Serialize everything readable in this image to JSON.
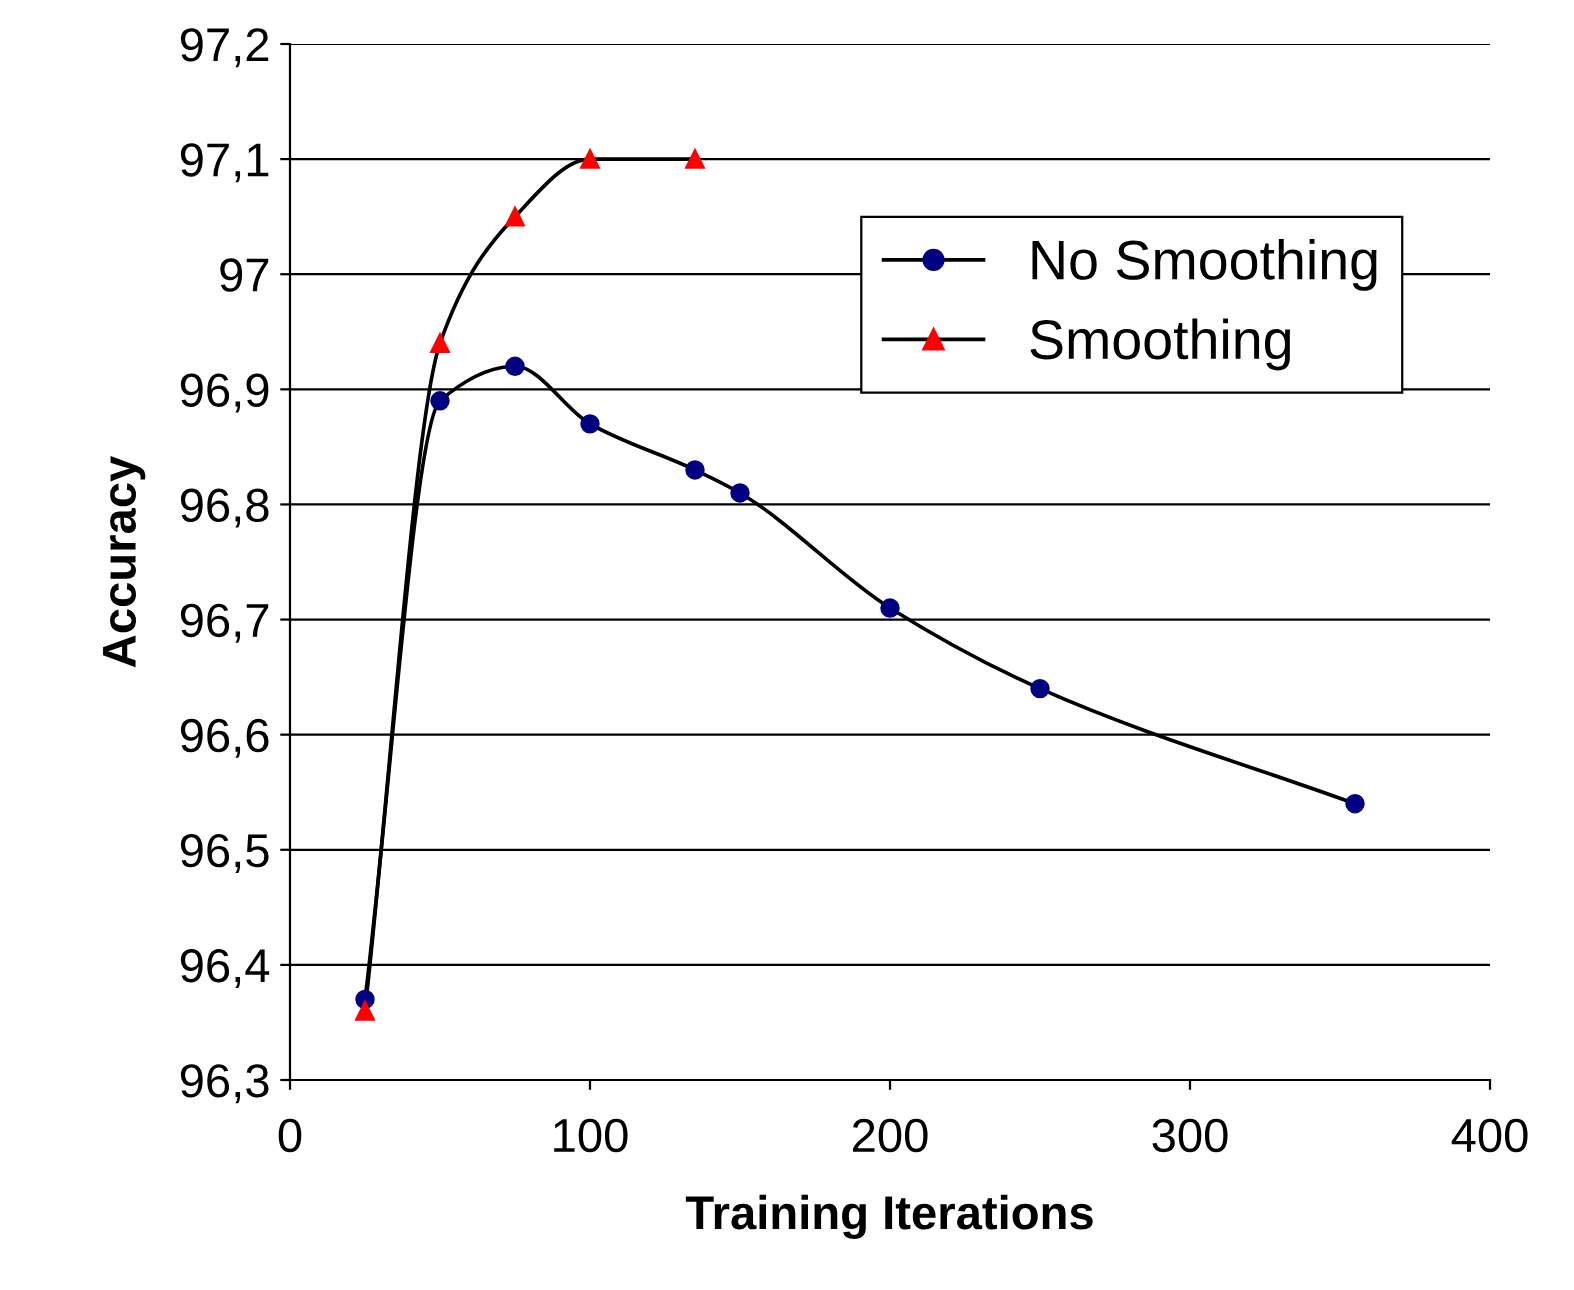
{
  "chart_data": {
    "type": "line",
    "xlabel": "Training Iterations",
    "ylabel": "Accuracy",
    "xlim": [
      0,
      400
    ],
    "xticks": [
      0,
      100,
      200,
      300,
      400
    ],
    "ylim": [
      96.3,
      97.2
    ],
    "yticks": [
      {
        "value": 96.3,
        "label": "96,3"
      },
      {
        "value": 96.4,
        "label": "96,4"
      },
      {
        "value": 96.5,
        "label": "96,5"
      },
      {
        "value": 96.6,
        "label": "96,6"
      },
      {
        "value": 96.7,
        "label": "96,7"
      },
      {
        "value": 96.8,
        "label": "96,8"
      },
      {
        "value": 96.9,
        "label": "96,9"
      },
      {
        "value": 97.0,
        "label": "97"
      },
      {
        "value": 97.1,
        "label": "97,1"
      },
      {
        "value": 97.2,
        "label": "97,2"
      }
    ],
    "grid": "y",
    "legend": "top right",
    "series": [
      {
        "name": "No Smoothing",
        "color": "#000080",
        "marker": "circle",
        "x": [
          25,
          50,
          75,
          100,
          135,
          150,
          200,
          250,
          355
        ],
        "values": [
          96.37,
          96.89,
          96.92,
          96.87,
          96.83,
          96.81,
          96.71,
          96.64,
          96.54
        ]
      },
      {
        "name": "Smoothing",
        "color": "#ff0000",
        "marker": "triangle",
        "x": [
          25,
          50,
          75,
          100,
          135
        ],
        "values": [
          96.36,
          96.94,
          97.05,
          97.1,
          97.1
        ]
      }
    ]
  }
}
